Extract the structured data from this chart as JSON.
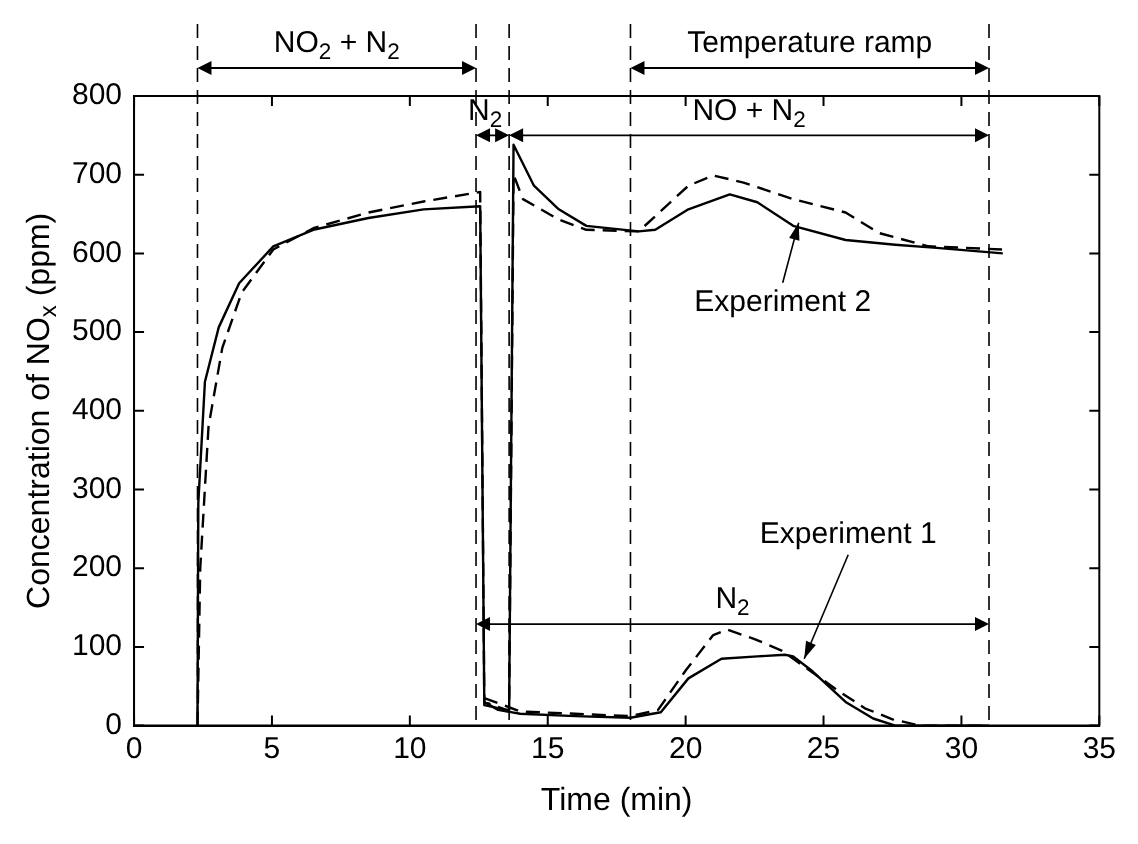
{
  "chart_data": {
    "type": "line",
    "xlabel": "Time (min)",
    "ylabel": "Concentration of NO$_{x}$ (ppm)",
    "xlim": [
      0,
      35
    ],
    "xticks": [
      0,
      5,
      10,
      15,
      20,
      25,
      30,
      35
    ],
    "ylim": [
      0,
      800
    ],
    "yticks": [
      0,
      100,
      200,
      300,
      400,
      500,
      600,
      700,
      800
    ],
    "grid": false,
    "legend": false,
    "marker": "none",
    "series": [
      {
        "color": "#000000",
        "line_style": "solid",
        "x": [
          2.3,
          2.33,
          2.57,
          3.07,
          3.81,
          5.05,
          6.5,
          8.5,
          10.5,
          12.55,
          12.7,
          13.5,
          13.6,
          13.76,
          14.5,
          15.4,
          16.4,
          18.3,
          18.9,
          20.1,
          21.6,
          22.6,
          23.9,
          25.8,
          27.6,
          29.1,
          31.5
        ],
        "values": [
          0,
          283,
          437,
          506,
          562,
          609,
          630,
          645,
          656,
          660,
          26,
          20,
          20,
          738,
          686,
          656,
          635,
          628,
          630,
          656,
          675,
          665,
          635,
          617,
          611,
          607,
          600
        ]
      },
      {
        "color": "#000000",
        "line_style": "dashed",
        "x": [
          2.3,
          2.4,
          2.7,
          3.2,
          3.9,
          5.05,
          6.5,
          8.5,
          10.5,
          12.55,
          12.7,
          13.5,
          13.6,
          13.76,
          14.1,
          15.4,
          16.4,
          18.3,
          20.1,
          21.0,
          22.1,
          23.9,
          25.8,
          27.0,
          28.8,
          31.5
        ],
        "values": [
          0,
          200,
          380,
          480,
          550,
          605,
          632,
          652,
          666,
          678,
          30,
          20,
          20,
          700,
          669,
          643,
          630,
          628,
          686,
          699,
          690,
          669,
          652,
          626,
          609,
          605
        ]
      },
      {
        "color": "#000000",
        "line_style": "solid",
        "x": [
          12.7,
          13.2,
          14,
          16,
          18,
          19.1,
          20.1,
          21.3,
          22.6,
          23.6,
          23.9,
          24.6,
          25.8,
          26.8,
          27.6,
          31
        ],
        "values": [
          30,
          20,
          15,
          12,
          10,
          17,
          60,
          85,
          88,
          90,
          88,
          69,
          30,
          9,
          0,
          0
        ]
      },
      {
        "color": "#000000",
        "line_style": "dashed",
        "x": [
          12.7,
          14,
          16,
          18,
          19,
          20,
          21,
          21.5,
          22.5,
          23.5,
          24.5,
          25.5,
          26.5,
          27.5,
          28.5,
          31
        ],
        "values": [
          35,
          18,
          15,
          12,
          20,
          70,
          115,
          122,
          110,
          95,
          70,
          45,
          22,
          8,
          0,
          0
        ]
      }
    ],
    "ref_lines": [
      {
        "axis": "x",
        "value": 2.3,
        "line_style": "dashed"
      },
      {
        "axis": "x",
        "value": 12.4,
        "line_style": "dashed"
      },
      {
        "axis": "x",
        "value": 13.6,
        "line_style": "dashed"
      },
      {
        "axis": "x",
        "value": 18,
        "line_style": "dashed"
      },
      {
        "axis": "x",
        "value": 31,
        "line_style": "dashed"
      }
    ],
    "annotations": [
      "NO$_{2}$ + N$_{2}$",
      "N$_{2}$",
      "Temperature ramp",
      "NO + N$_{2}$",
      "N$_{2}$",
      {
        "text": "Experiment 2",
        "x": 24.1,
        "y": 639
      },
      {
        "text": "Experiment 1",
        "x": 24.3,
        "y": 85
      }
    ]
  }
}
